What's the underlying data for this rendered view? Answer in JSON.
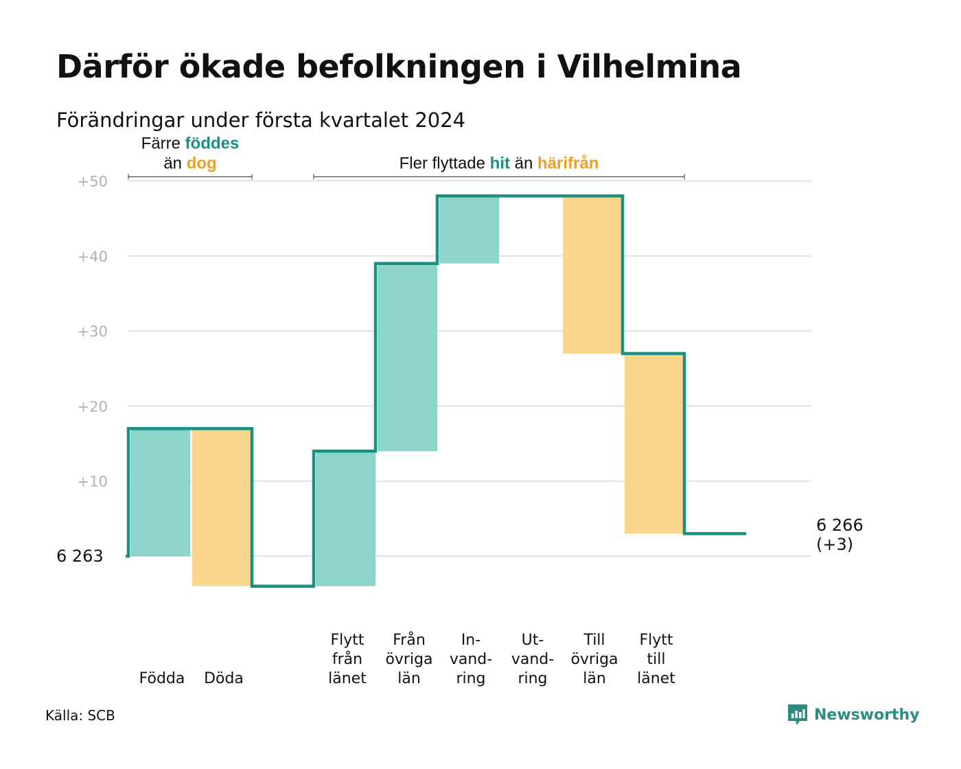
{
  "title": "Därför ökade befolkningen i Vilhelmina",
  "subtitle": "Förändringar under första kvartalet 2024",
  "source": "Källa: SCB",
  "logo_text": "Newsworthy",
  "colors": {
    "line": "#1a9082",
    "teal": "#8dd4ca",
    "orange": "#fad58c",
    "teal_text": "#1a9082",
    "orange_text": "#f0a020",
    "grid": "#e2e2e2"
  },
  "chart_data": {
    "type": "waterfall",
    "start_value": 6263,
    "start_label": "6  263",
    "end_label_lines": [
      "6 266",
      "(+3)"
    ],
    "ylim": [
      -4,
      50
    ],
    "yticks": [
      {
        "value": 10,
        "label": "+10"
      },
      {
        "value": 20,
        "label": "+20"
      },
      {
        "value": 30,
        "label": "+30"
      },
      {
        "value": 40,
        "label": "+40"
      },
      {
        "value": 50,
        "label": "+50"
      }
    ],
    "steps": [
      {
        "label_lines": [
          "Födda"
        ],
        "change": 17,
        "kind": "in"
      },
      {
        "label_lines": [
          "Döda"
        ],
        "change": -21,
        "kind": "out"
      },
      {
        "label_lines": [],
        "change": 0,
        "kind": "gap"
      },
      {
        "label_lines": [
          "Flytt",
          "från",
          "länet"
        ],
        "change": 18,
        "kind": "in"
      },
      {
        "label_lines": [
          "Från",
          "övriga",
          "län"
        ],
        "change": 25,
        "kind": "in"
      },
      {
        "label_lines": [
          "In-",
          "vand-",
          "ring"
        ],
        "change": 9,
        "kind": "in"
      },
      {
        "label_lines": [
          "Ut-",
          "vand-",
          "ring"
        ],
        "change": 0,
        "kind": "out"
      },
      {
        "label_lines": [
          "Till",
          "övriga",
          "län"
        ],
        "change": -21,
        "kind": "out"
      },
      {
        "label_lines": [
          "Flytt",
          "till",
          "länet"
        ],
        "change": -24,
        "kind": "out"
      },
      {
        "label_lines": [],
        "change": 0,
        "kind": "gap"
      }
    ],
    "annotations": [
      {
        "lines": [
          [
            {
              "text": "Färre ",
              "style": "plain"
            },
            {
              "text": "föddes",
              "style": "teal"
            }
          ],
          [
            {
              "text": "än ",
              "style": "plain"
            },
            {
              "text": "dog",
              "style": "orange"
            }
          ]
        ],
        "from_step": 0,
        "to_step": 1
      },
      {
        "lines": [
          [
            {
              "text": "Fler flyttade ",
              "style": "plain"
            },
            {
              "text": "hit",
              "style": "teal"
            },
            {
              "text": "  än ",
              "style": "plain"
            },
            {
              "text": "härifrån",
              "style": "orange"
            }
          ]
        ],
        "from_step": 3,
        "to_step": 8
      }
    ]
  }
}
